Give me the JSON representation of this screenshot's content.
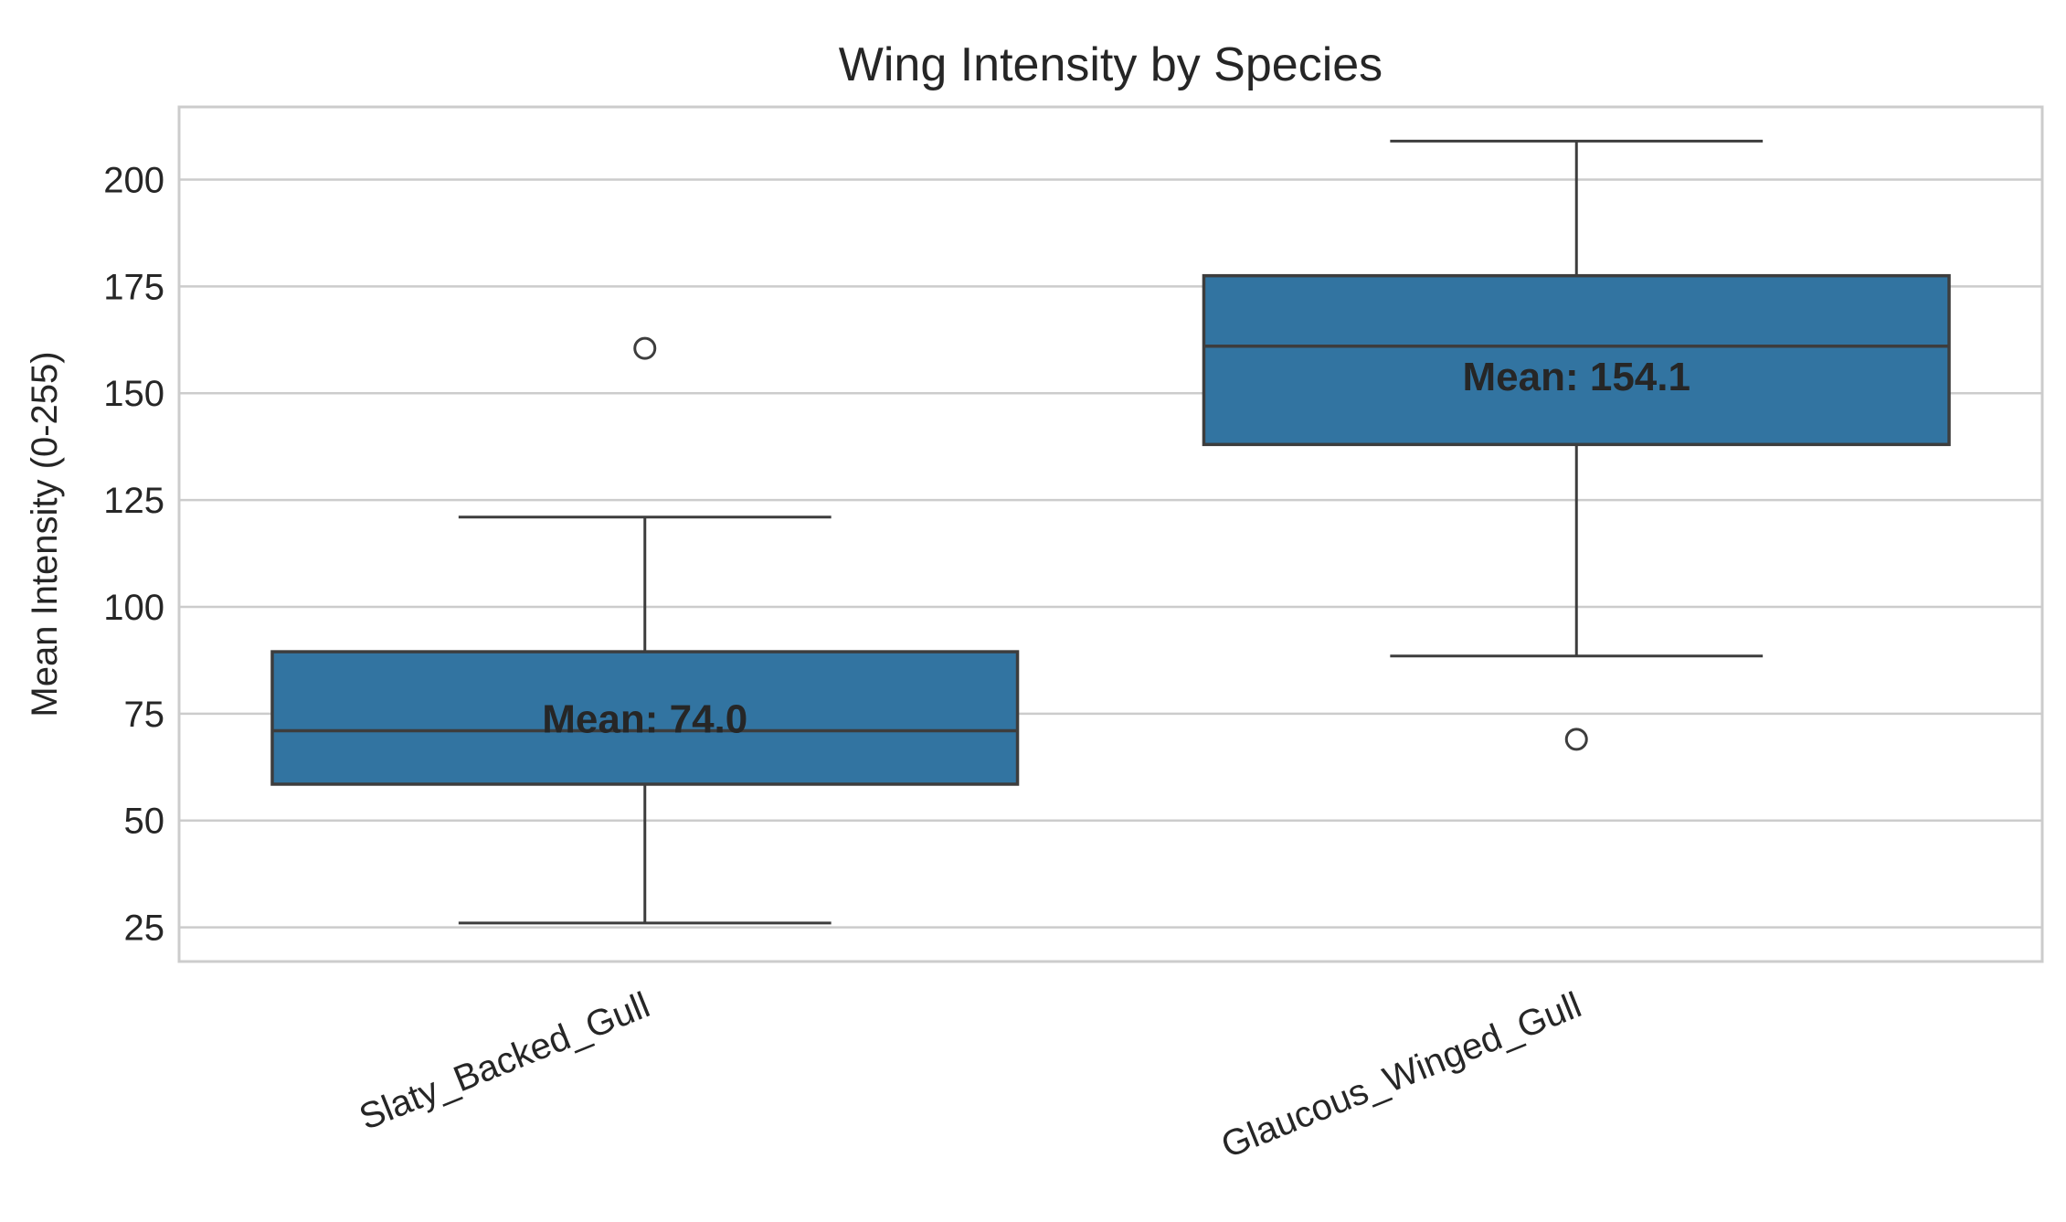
{
  "chart_data": {
    "type": "box",
    "title": "Wing Intensity by Species",
    "xlabel": "",
    "ylabel": "Mean Intensity (0-255)",
    "ylim": [
      17,
      217
    ],
    "yticks": [
      25,
      50,
      75,
      100,
      125,
      150,
      175,
      200
    ],
    "grid": true,
    "categories": [
      "Slaty_Backed_Gull",
      "Glaucous_Winged_Gull"
    ],
    "box_color": "#3274a1",
    "edge_color": "#3d3d3d",
    "grid_color": "#cccccc",
    "boxes": [
      {
        "category": "Slaty_Backed_Gull",
        "whisker_low": 26,
        "q1": 58.5,
        "median": 71,
        "q3": 89.5,
        "whisker_high": 121,
        "outliers": [
          160.5
        ],
        "mean": 74.0,
        "mean_label": "Mean: 74.0"
      },
      {
        "category": "Glaucous_Winged_Gull",
        "whisker_low": 88.5,
        "q1": 138,
        "median": 161,
        "q3": 177.5,
        "whisker_high": 209,
        "outliers": [
          69
        ],
        "mean": 154.1,
        "mean_label": "Mean: 154.1"
      }
    ]
  }
}
